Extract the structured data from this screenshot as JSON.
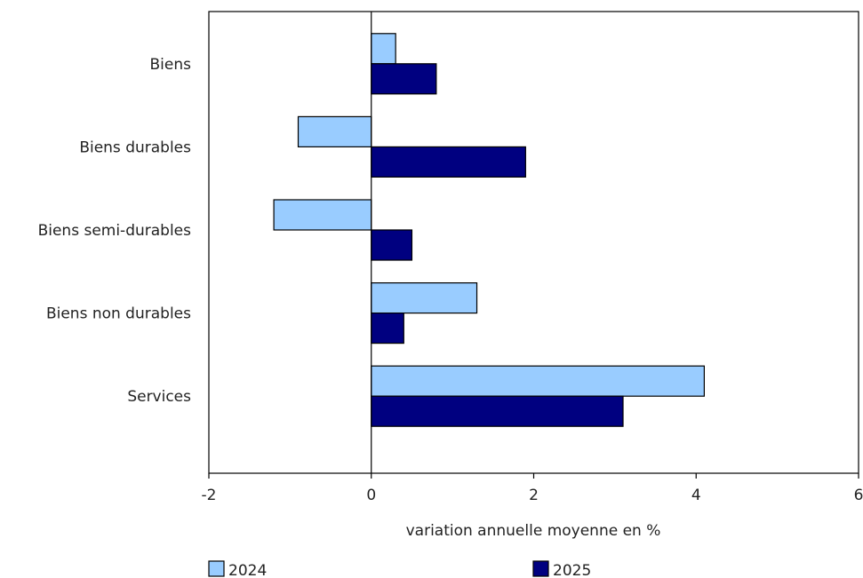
{
  "chart_data": {
    "type": "bar",
    "orientation": "horizontal",
    "categories": [
      "Biens",
      "Biens durables",
      "Biens semi-durables",
      "Biens non durables",
      "Services"
    ],
    "series": [
      {
        "name": "2024",
        "values": [
          0.3,
          -0.9,
          -1.2,
          1.3,
          4.1
        ],
        "color": "#99ccff"
      },
      {
        "name": "2025",
        "values": [
          0.8,
          1.9,
          0.5,
          0.4,
          3.1
        ],
        "color": "#000080"
      }
    ],
    "xlim": [
      -2,
      6
    ],
    "xticks": [
      "-2",
      "0",
      "2",
      "4",
      "6"
    ],
    "xlabel": "variation annuelle moyenne en %",
    "grid": false,
    "legend_position": "bottom"
  }
}
